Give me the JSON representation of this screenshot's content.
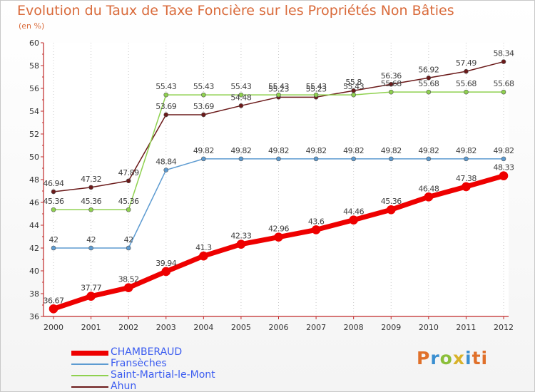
{
  "title": "Evolution du Taux de Taxe Foncière sur les Propriétés Non Bâties",
  "unit_label": "(en %)",
  "logo": {
    "text": "Proxiti",
    "letters": [
      "P",
      "r",
      "o",
      "x",
      "i",
      "ti"
    ]
  },
  "chart_data": {
    "type": "line",
    "title": "Evolution du Taux de Taxe Foncière sur les Propriétés Non Bâties",
    "ylabel": "(en %)",
    "xlabel": "",
    "ylim": [
      36,
      60
    ],
    "yticks": [
      36,
      38,
      40,
      42,
      44,
      46,
      48,
      50,
      52,
      54,
      56,
      58,
      60
    ],
    "x": [
      "2000",
      "2001",
      "2002",
      "2003",
      "2004",
      "2005",
      "2006",
      "2007",
      "2008",
      "2009",
      "2010",
      "2011",
      "2012"
    ],
    "grid": "vertical",
    "legend_position": "bottom-left",
    "series": [
      {
        "name": "Ahun",
        "color": "#6b1a1a",
        "width": 1.5,
        "values": [
          46.94,
          47.32,
          47.89,
          53.69,
          53.69,
          54.48,
          55.23,
          55.23,
          55.8,
          56.36,
          56.92,
          57.49,
          58.34
        ],
        "labels": [
          "46.94",
          "47.32",
          "47.89",
          "53.69",
          "53.69",
          "54.48",
          "55.23",
          "55.23",
          "55.8",
          "56.36",
          "56.92",
          "57.49",
          "58.34"
        ]
      },
      {
        "name": "Saint-Martial-le-Mont",
        "color": "#8fd14f",
        "width": 1.5,
        "values": [
          45.36,
          45.36,
          45.36,
          55.43,
          55.43,
          55.43,
          55.43,
          55.43,
          55.43,
          55.68,
          55.68,
          55.68,
          55.68
        ],
        "labels": [
          "45.36",
          "45.36",
          "45.36",
          "55.43",
          "55.43",
          "55.43",
          "55.43",
          "55.43",
          "55.43",
          "55.68",
          "55.68",
          "55.68",
          "55.68"
        ]
      },
      {
        "name": "Fransèches",
        "color": "#5d9bd1",
        "width": 1.5,
        "values": [
          42,
          42,
          42,
          48.84,
          49.82,
          49.82,
          49.82,
          49.82,
          49.82,
          49.82,
          49.82,
          49.82,
          49.82
        ],
        "labels": [
          "42",
          "42",
          "42",
          "48.84",
          "49.82",
          "49.82",
          "49.82",
          "49.82",
          "49.82",
          "49.82",
          "49.82",
          "49.82",
          "49.82"
        ]
      },
      {
        "name": "CHAMBERAUD",
        "color": "#ee0000",
        "width": 7,
        "values": [
          36.67,
          37.77,
          38.52,
          39.94,
          41.3,
          42.33,
          42.96,
          43.6,
          44.46,
          45.36,
          46.48,
          47.38,
          48.33
        ],
        "labels": [
          "36.67",
          "37.77",
          "38.52",
          "39.94",
          "41.3",
          "42.33",
          "42.96",
          "43.6",
          "44.46",
          "45.36",
          "46.48",
          "47.38",
          "48.33"
        ]
      }
    ],
    "legend_order": [
      "CHAMBERAUD",
      "Fransèches",
      "Saint-Martial-le-Mont",
      "Ahun"
    ]
  }
}
